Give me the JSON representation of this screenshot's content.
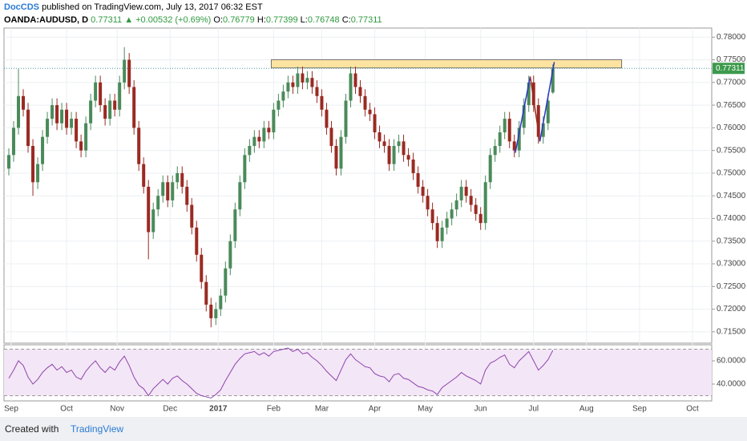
{
  "header": {
    "author": "DocCDS",
    "published": "published on TradingView.com, July 13, 2017 06:32 EST",
    "symbol": "OANDA:AUDUSD, D",
    "last": "0.77311",
    "change": "▲ +0.00532 (+0.69%)",
    "o_label": "O:",
    "o": "0.76779",
    "h_label": "H:",
    "h": "0.77399",
    "l_label": "L:",
    "l": "0.76748",
    "c_label": "C:",
    "c": "0.77311"
  },
  "footer": {
    "created": "Created with",
    "brand": "TradingView"
  },
  "chart_data": [
    {
      "type": "candlestick",
      "up_color": "#4a8a5a",
      "down_color": "#9a2a22",
      "grid": true,
      "xlim": [
        -1,
        146
      ],
      "ylim": [
        0.7125,
        0.782
      ],
      "xticks": [
        {
          "value": 0.5,
          "label": "Sep"
        },
        {
          "value": 12,
          "label": "Oct"
        },
        {
          "value": 22.5,
          "label": "Nov"
        },
        {
          "value": 33.5,
          "label": "Dec"
        },
        {
          "value": 43.5,
          "label": "2017"
        },
        {
          "value": 55,
          "label": "Feb"
        },
        {
          "value": 65,
          "label": "Mar"
        },
        {
          "value": 76,
          "label": "Apr"
        },
        {
          "value": 86.5,
          "label": "May"
        },
        {
          "value": 98,
          "label": "Jun"
        },
        {
          "value": 109,
          "label": "Jul"
        },
        {
          "value": 120,
          "label": "Aug"
        },
        {
          "value": 131,
          "label": "Sep"
        },
        {
          "value": 142,
          "label": "Oct"
        }
      ],
      "yticks": [
        {
          "value": 0.78,
          "label": "0.78000"
        },
        {
          "value": 0.775,
          "label": "0.77500"
        },
        {
          "value": 0.77,
          "label": "0.77000"
        },
        {
          "value": 0.765,
          "label": "0.76500"
        },
        {
          "value": 0.76,
          "label": "0.76000"
        },
        {
          "value": 0.755,
          "label": "0.75500"
        },
        {
          "value": 0.75,
          "label": "0.75000"
        },
        {
          "value": 0.745,
          "label": "0.74500"
        },
        {
          "value": 0.74,
          "label": "0.74000"
        },
        {
          "value": 0.735,
          "label": "0.73500"
        },
        {
          "value": 0.73,
          "label": "0.73000"
        },
        {
          "value": 0.725,
          "label": "0.72500"
        },
        {
          "value": 0.72,
          "label": "0.72000"
        },
        {
          "value": 0.715,
          "label": "0.71500"
        }
      ],
      "last_price": {
        "value": 0.77311,
        "label": "0.77311",
        "color": "#3c9a4c"
      },
      "zone": {
        "x": [
          54.5,
          127.3
        ],
        "y": [
          0.7732,
          0.775
        ],
        "color": "#fde3a0"
      },
      "zigzag": {
        "x": [
          105.2,
          108.3,
          110.3,
          113.3
        ],
        "y": [
          0.7545,
          0.7713,
          0.757,
          0.7745
        ],
        "colors": [
          "#2a35c8",
          "#9a2a22",
          "#2a35c8"
        ]
      },
      "open": [
        0.751,
        0.754,
        0.76,
        0.767,
        0.764,
        0.756,
        0.748,
        0.752,
        0.758,
        0.762,
        0.765,
        0.761,
        0.764,
        0.76,
        0.762,
        0.757,
        0.755,
        0.761,
        0.766,
        0.77,
        0.765,
        0.762,
        0.766,
        0.764,
        0.77,
        0.775,
        0.769,
        0.76,
        0.752,
        0.747,
        0.737,
        0.742,
        0.745,
        0.748,
        0.744,
        0.748,
        0.75,
        0.747,
        0.743,
        0.738,
        0.732,
        0.726,
        0.721,
        0.718,
        0.72,
        0.723,
        0.729,
        0.735,
        0.742,
        0.748,
        0.754,
        0.756,
        0.758,
        0.757,
        0.76,
        0.759,
        0.764,
        0.766,
        0.768,
        0.77,
        0.769,
        0.772,
        0.77,
        0.771,
        0.769,
        0.767,
        0.764,
        0.76,
        0.756,
        0.751,
        0.758,
        0.766,
        0.772,
        0.769,
        0.767,
        0.764,
        0.763,
        0.759,
        0.757,
        0.756,
        0.752,
        0.756,
        0.757,
        0.754,
        0.753,
        0.75,
        0.747,
        0.745,
        0.742,
        0.739,
        0.735,
        0.738,
        0.74,
        0.742,
        0.744,
        0.747,
        0.745,
        0.743,
        0.741,
        0.739,
        0.748,
        0.754,
        0.756,
        0.759,
        0.762,
        0.757,
        0.755,
        0.76,
        0.765,
        0.77,
        0.765,
        0.758,
        0.761,
        0.7678
      ],
      "high": [
        0.7555,
        0.7615,
        0.773,
        0.7685,
        0.7655,
        0.7575,
        0.7535,
        0.7595,
        0.7635,
        0.7665,
        0.7665,
        0.7655,
        0.7655,
        0.7635,
        0.7635,
        0.7585,
        0.7625,
        0.7675,
        0.7715,
        0.7715,
        0.7665,
        0.7675,
        0.7675,
        0.7715,
        0.7778,
        0.7765,
        0.7705,
        0.7615,
        0.7535,
        0.7485,
        0.7435,
        0.7465,
        0.7495,
        0.7495,
        0.7495,
        0.7515,
        0.7515,
        0.7485,
        0.7445,
        0.7395,
        0.7335,
        0.7275,
        0.7225,
        0.7215,
        0.7245,
        0.7305,
        0.7365,
        0.7435,
        0.7495,
        0.7555,
        0.7575,
        0.7595,
        0.7595,
        0.7615,
        0.7615,
        0.7655,
        0.7675,
        0.7695,
        0.7715,
        0.7715,
        0.7735,
        0.7735,
        0.7725,
        0.7725,
        0.7705,
        0.7685,
        0.7655,
        0.7615,
        0.7575,
        0.7595,
        0.7675,
        0.7735,
        0.7735,
        0.7705,
        0.7685,
        0.7655,
        0.7645,
        0.7605,
        0.7585,
        0.7575,
        0.7575,
        0.7585,
        0.7585,
        0.7555,
        0.7545,
        0.7515,
        0.7485,
        0.7465,
        0.7435,
        0.7405,
        0.7395,
        0.7415,
        0.7435,
        0.7455,
        0.7485,
        0.7485,
        0.7465,
        0.7445,
        0.7425,
        0.7495,
        0.7555,
        0.7575,
        0.7605,
        0.7635,
        0.7635,
        0.7585,
        0.7615,
        0.7665,
        0.7715,
        0.7715,
        0.7665,
        0.7625,
        0.7675,
        0.774
      ],
      "low": [
        0.7495,
        0.7525,
        0.7585,
        0.7625,
        0.7545,
        0.745,
        0.7465,
        0.7505,
        0.7565,
        0.7605,
        0.7595,
        0.7595,
        0.7585,
        0.7585,
        0.7555,
        0.7535,
        0.7535,
        0.7595,
        0.7645,
        0.7635,
        0.7605,
        0.7605,
        0.7625,
        0.7625,
        0.7685,
        0.7675,
        0.7585,
        0.7505,
        0.7455,
        0.731,
        0.7355,
        0.7405,
        0.7435,
        0.7425,
        0.7425,
        0.7465,
        0.7455,
        0.7415,
        0.7365,
        0.7305,
        0.7245,
        0.7195,
        0.716,
        0.7165,
        0.7185,
        0.7215,
        0.7275,
        0.7335,
        0.7405,
        0.7465,
        0.7525,
        0.7545,
        0.7555,
        0.7555,
        0.7575,
        0.7575,
        0.7625,
        0.7645,
        0.7665,
        0.7675,
        0.7675,
        0.7685,
        0.7685,
        0.7675,
        0.7655,
        0.7625,
        0.7585,
        0.7545,
        0.7495,
        0.7495,
        0.7565,
        0.7645,
        0.7675,
        0.7655,
        0.7625,
        0.7615,
        0.7575,
        0.7555,
        0.7545,
        0.7505,
        0.7505,
        0.7545,
        0.7525,
        0.7515,
        0.7485,
        0.7455,
        0.7435,
        0.7405,
        0.7375,
        0.7335,
        0.7335,
        0.7365,
        0.7385,
        0.7405,
        0.7425,
        0.7435,
        0.7415,
        0.7395,
        0.7375,
        0.7375,
        0.7465,
        0.7525,
        0.7545,
        0.7575,
        0.7555,
        0.7535,
        0.7535,
        0.7585,
        0.7635,
        0.7635,
        0.7565,
        0.7565,
        0.7595,
        0.7675
      ],
      "close": [
        0.754,
        0.76,
        0.767,
        0.764,
        0.756,
        0.748,
        0.752,
        0.758,
        0.762,
        0.765,
        0.761,
        0.764,
        0.76,
        0.762,
        0.757,
        0.755,
        0.761,
        0.766,
        0.77,
        0.765,
        0.762,
        0.766,
        0.764,
        0.77,
        0.775,
        0.769,
        0.76,
        0.752,
        0.747,
        0.737,
        0.742,
        0.745,
        0.748,
        0.744,
        0.748,
        0.75,
        0.747,
        0.743,
        0.738,
        0.732,
        0.726,
        0.721,
        0.718,
        0.72,
        0.723,
        0.729,
        0.735,
        0.742,
        0.748,
        0.754,
        0.756,
        0.758,
        0.757,
        0.76,
        0.759,
        0.764,
        0.766,
        0.768,
        0.77,
        0.769,
        0.772,
        0.77,
        0.771,
        0.769,
        0.767,
        0.764,
        0.76,
        0.756,
        0.751,
        0.758,
        0.766,
        0.772,
        0.769,
        0.767,
        0.764,
        0.763,
        0.759,
        0.757,
        0.756,
        0.752,
        0.756,
        0.757,
        0.754,
        0.753,
        0.75,
        0.747,
        0.745,
        0.742,
        0.739,
        0.735,
        0.738,
        0.74,
        0.742,
        0.744,
        0.747,
        0.745,
        0.743,
        0.741,
        0.739,
        0.748,
        0.754,
        0.756,
        0.759,
        0.762,
        0.757,
        0.755,
        0.76,
        0.765,
        0.77,
        0.765,
        0.758,
        0.761,
        0.766,
        0.7731
      ]
    },
    {
      "type": "line",
      "color": "#8e44ad",
      "fill": "#f3e6f6",
      "ylim": [
        25.5,
        73.8
      ],
      "band": [
        30,
        70
      ],
      "yticks": [
        {
          "value": 60,
          "label": "60.0000"
        },
        {
          "value": 40,
          "label": "40.0000"
        }
      ],
      "values": [
        45,
        52,
        60,
        56,
        46,
        40,
        44,
        50,
        54,
        57,
        52,
        55,
        50,
        52,
        46,
        44,
        51,
        56,
        60,
        54,
        50,
        55,
        52,
        59,
        64,
        56,
        46,
        39,
        36,
        30,
        36,
        40,
        44,
        40,
        45,
        47,
        43,
        40,
        36,
        32,
        30,
        29,
        28,
        31,
        35,
        43,
        50,
        57,
        62,
        66,
        67,
        68,
        65,
        67,
        64,
        68,
        69,
        70,
        71,
        68,
        70,
        66,
        67,
        63,
        60,
        56,
        51,
        47,
        43,
        52,
        61,
        66,
        61,
        58,
        55,
        54,
        49,
        47,
        46,
        42,
        48,
        49,
        45,
        44,
        41,
        38,
        37,
        35,
        34,
        31,
        37,
        40,
        43,
        46,
        50,
        47,
        45,
        43,
        40,
        52,
        58,
        60,
        63,
        65,
        57,
        54,
        60,
        64,
        68,
        60,
        52,
        56,
        61,
        69
      ]
    }
  ]
}
